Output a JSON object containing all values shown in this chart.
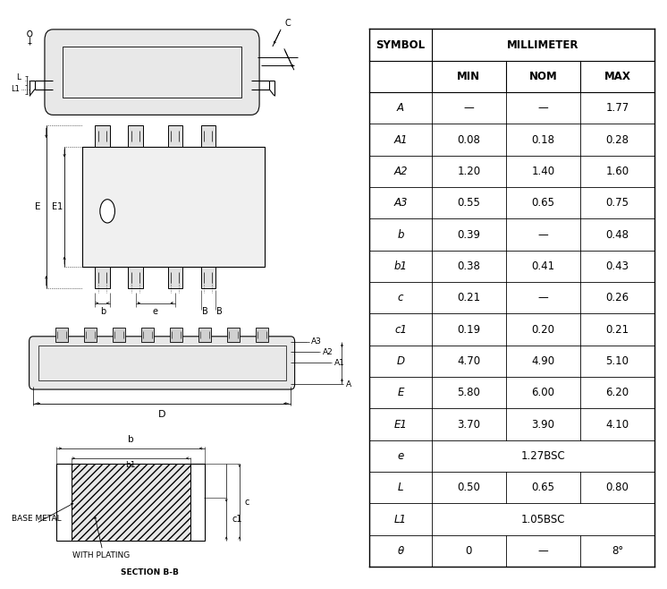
{
  "table_rows": [
    [
      "A",
      "—",
      "—",
      "1.77"
    ],
    [
      "A1",
      "0.08",
      "0.18",
      "0.28"
    ],
    [
      "A2",
      "1.20",
      "1.40",
      "1.60"
    ],
    [
      "A3",
      "0.55",
      "0.65",
      "0.75"
    ],
    [
      "b",
      "0.39",
      "—",
      "0.48"
    ],
    [
      "b1",
      "0.38",
      "0.41",
      "0.43"
    ],
    [
      "c",
      "0.21",
      "—",
      "0.26"
    ],
    [
      "c1",
      "0.19",
      "0.20",
      "0.21"
    ],
    [
      "D",
      "4.70",
      "4.90",
      "5.10"
    ],
    [
      "E",
      "5.80",
      "6.00",
      "6.20"
    ],
    [
      "E1",
      "3.70",
      "3.90",
      "4.10"
    ],
    [
      "e",
      "1.27BSC",
      "",
      ""
    ],
    [
      "L",
      "0.50",
      "0.65",
      "0.80"
    ],
    [
      "L1",
      "1.05BSC",
      "",
      ""
    ],
    [
      "θ",
      "0",
      "—",
      "8°"
    ]
  ],
  "bg_color": "#ffffff",
  "lc": "#000000"
}
